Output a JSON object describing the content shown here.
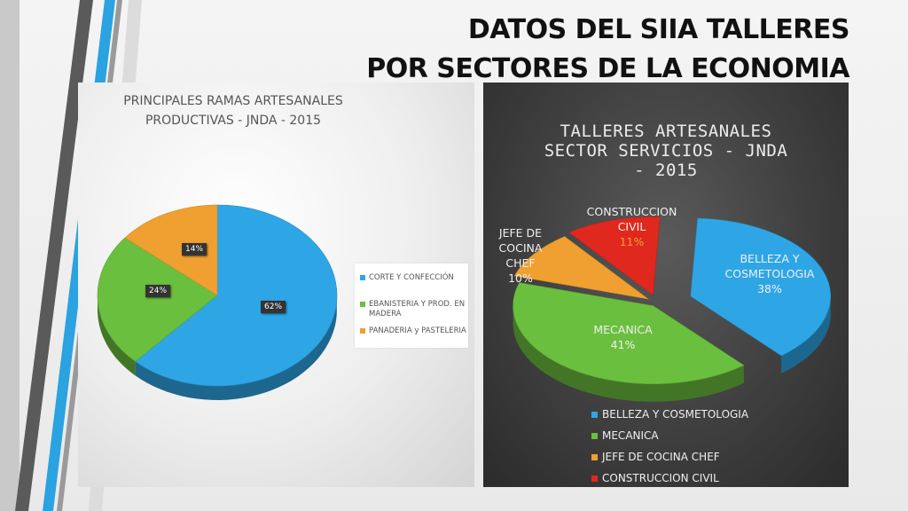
{
  "slide": {
    "title_line1": "DATOS DEL SIIA TALLERES",
    "title_line2": "POR SECTORES DE LA ECONOMIA"
  },
  "colors": {
    "blue": "#2ea6e6",
    "green": "#6bbf3e",
    "orange": "#f0a030",
    "red": "#e0281e"
  },
  "chart_data": [
    {
      "type": "pie",
      "title": "PRINCIPALES RAMAS ARTESANALES PRODUCTIVAS - JNDA - 2015",
      "title_line1": "PRINCIPALES RAMAS ARTESANALES",
      "title_line2": "PRODUCTIVAS - JNDA - 2015",
      "legend_position": "right",
      "slices": [
        {
          "label": "CORTE Y CONFECCIÓN",
          "value": 62,
          "display": "62%",
          "color": "#2ea6e6"
        },
        {
          "label": "EBANISTERIA Y PROD. EN MADERA",
          "value": 24,
          "display": "24%",
          "color": "#6bbf3e"
        },
        {
          "label": "PANADERIA y PASTELERIA",
          "value": 14,
          "display": "14%",
          "color": "#f0a030"
        }
      ],
      "legend": {
        "line_corte": "CORTE Y CONFECCIÓN",
        "line_ebanisteria_1": "EBANISTERIA Y PROD. EN",
        "line_ebanisteria_2": "MADERA",
        "line_panaderia": "PANADERIA y PASTELERIA"
      }
    },
    {
      "type": "pie",
      "title": "TALLERES ARTESANALES SECTOR SERVICIOS - JNDA - 2015",
      "title_line1": "TALLERES ARTESANALES",
      "title_line2": "SECTOR SERVICIOS - JNDA",
      "title_line3": "- 2015",
      "legend_position": "bottom",
      "slices": [
        {
          "label": "BELLEZA Y COSMETOLOGIA",
          "value": 38,
          "display": "38%",
          "color": "#2ea6e6"
        },
        {
          "label": "MECANICA",
          "value": 41,
          "display": "41%",
          "color": "#6bbf3e"
        },
        {
          "label": "JEFE DE COCINA CHEF",
          "value": 10,
          "display": "10%",
          "color": "#f0a030"
        },
        {
          "label": "CONSTRUCCION CIVIL",
          "value": 11,
          "display": "11%",
          "color": "#e0281e"
        }
      ],
      "data_labels": {
        "belleza_1": "BELLEZA Y",
        "belleza_2": "COSMETOLOGIA",
        "mecanica": "MECANICA",
        "jefe_1": "JEFE DE",
        "jefe_2": "COCINA",
        "jefe_3": "CHEF",
        "construccion_1": "CONSTRUCCION",
        "construccion_2": "CIVIL"
      }
    }
  ]
}
